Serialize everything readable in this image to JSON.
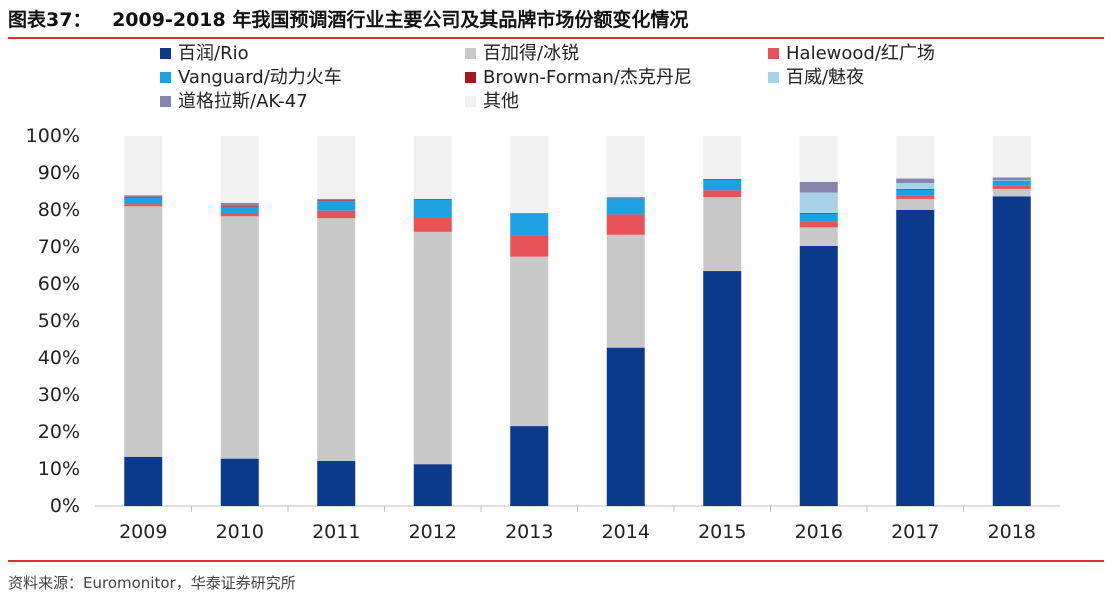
{
  "header": {
    "figure_label": "图表37：",
    "title": "2009-2018 年我国预调酒行业主要公司及其品牌市场份额变化情况"
  },
  "source": "资料来源：Euromonitor，华泰证券研究所",
  "chart_data": {
    "type": "bar",
    "stacked": true,
    "categories": [
      "2009",
      "2010",
      "2011",
      "2012",
      "2013",
      "2014",
      "2015",
      "2016",
      "2017",
      "2018"
    ],
    "ylim": [
      0,
      100
    ],
    "yticks": [
      "0%",
      "10%",
      "20%",
      "30%",
      "40%",
      "50%",
      "60%",
      "70%",
      "80%",
      "90%",
      "100%"
    ],
    "legend_position": "top",
    "series": [
      {
        "name": "百润/Rio",
        "color": "#0b3a8c",
        "values": [
          13.3,
          12.8,
          12.2,
          11.3,
          21.6,
          42.8,
          63.5,
          70.3,
          80.0,
          83.7
        ]
      },
      {
        "name": "百加得/冰锐",
        "color": "#c8c8c8",
        "values": [
          67.7,
          65.5,
          65.6,
          62.8,
          45.8,
          30.5,
          20.0,
          5.0,
          3.0,
          2.0
        ]
      },
      {
        "name": "Halewood/红广场",
        "color": "#e8535a",
        "values": [
          0.6,
          0.9,
          2.0,
          4.0,
          5.6,
          5.5,
          1.8,
          1.7,
          1.0,
          1.0
        ]
      },
      {
        "name": "Vanguard/动力火车",
        "color": "#1ea1e2",
        "values": [
          1.8,
          1.6,
          2.6,
          4.6,
          5.9,
          4.4,
          2.9,
          2.0,
          1.5,
          0.9
        ]
      },
      {
        "name": "Brown-Forman/杰克丹尼",
        "color": "#a3191f",
        "values": [
          0.2,
          0.2,
          0.2,
          0.2,
          0.2,
          0.2,
          0.2,
          0.2,
          0.2,
          0.2
        ]
      },
      {
        "name": "百威/魅夜",
        "color": "#a8d3e6",
        "values": [
          0.0,
          0.0,
          0.0,
          0.0,
          0.0,
          0.0,
          0.0,
          5.5,
          1.6,
          0.2
        ]
      },
      {
        "name": "道格拉斯/AK-47",
        "color": "#8585ad",
        "values": [
          0.4,
          0.9,
          0.4,
          0.1,
          0.0,
          0.0,
          0.0,
          2.9,
          1.2,
          0.8
        ]
      },
      {
        "name": "其他",
        "color": "#f1f1f1",
        "values": [
          16.0,
          18.1,
          17.0,
          17.0,
          20.9,
          16.6,
          11.6,
          12.4,
          11.5,
          11.2
        ]
      }
    ]
  }
}
